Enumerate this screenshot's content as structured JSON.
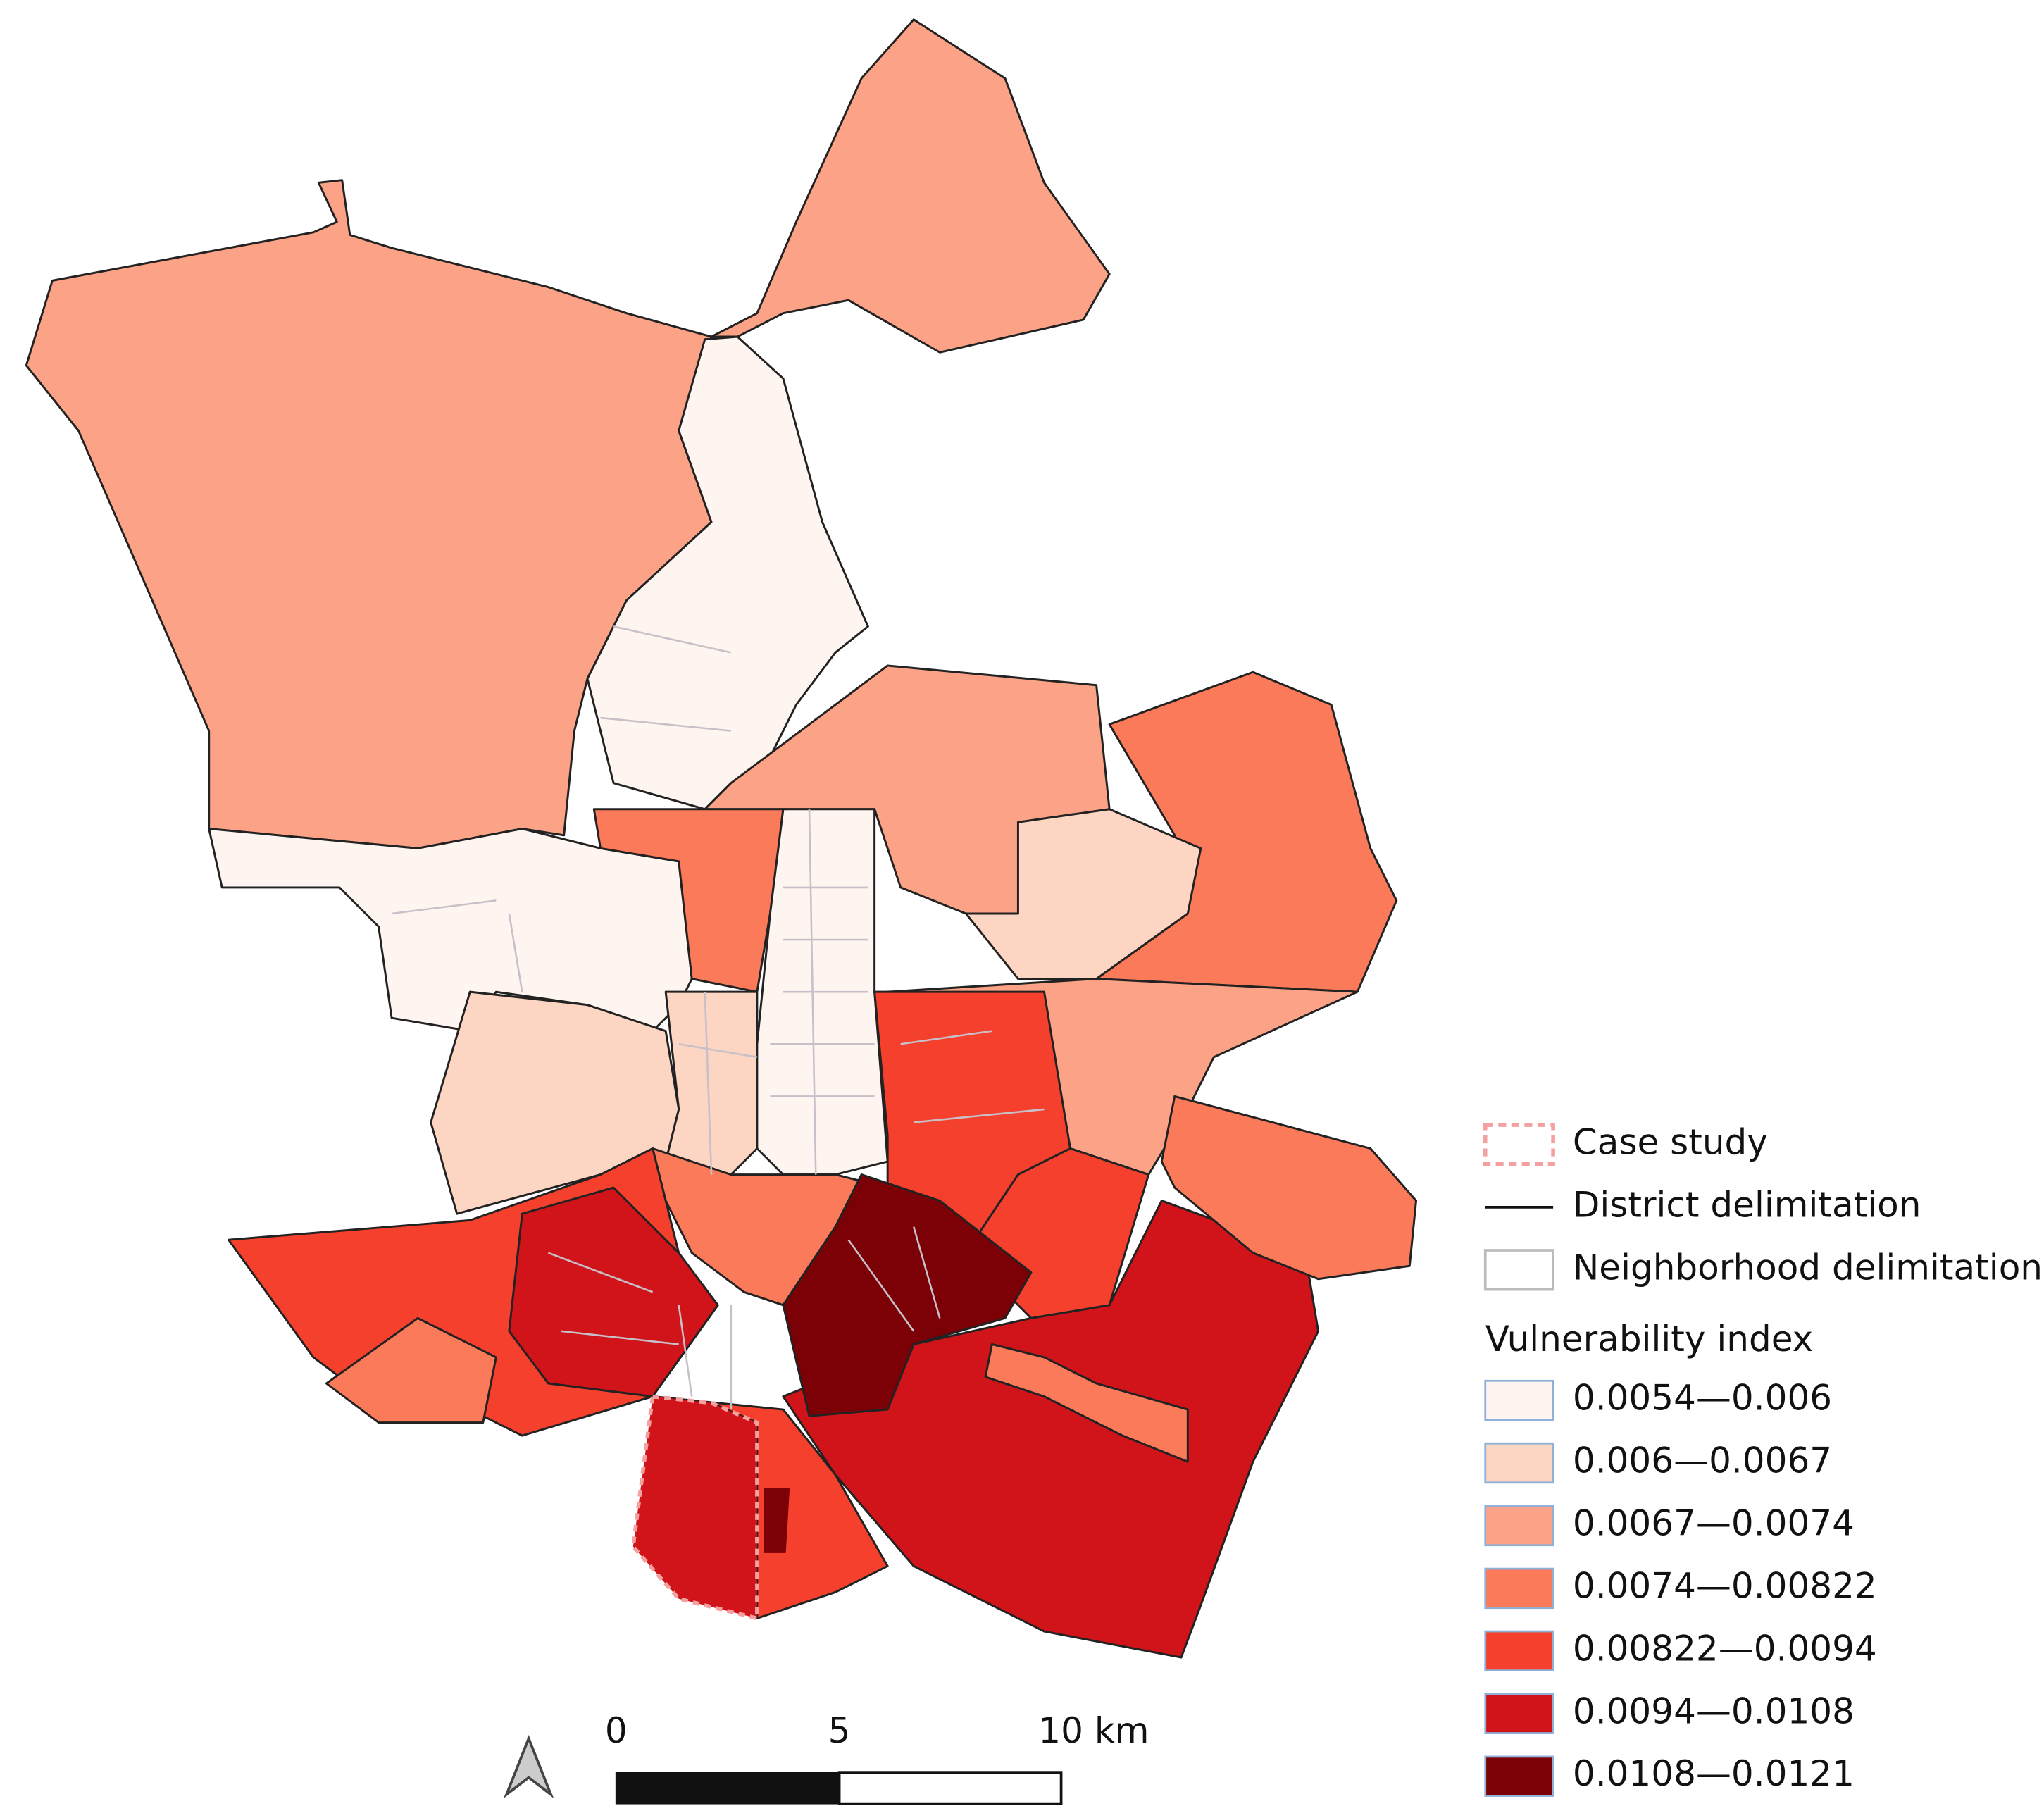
{
  "legend": {
    "items": [
      {
        "label": "Case study"
      },
      {
        "label": "District delimitation"
      },
      {
        "label": "Neighborhood delimitation"
      }
    ],
    "title": "Vulnerability index",
    "classes": [
      {
        "label": "0.0054—0.006",
        "color": "#fff5f0"
      },
      {
        "label": "0.006—0.0067",
        "color": "#fdd5c3"
      },
      {
        "label": "0.0067—0.0074",
        "color": "#fca387"
      },
      {
        "label": "0.0074—0.00822",
        "color": "#fb7a5a"
      },
      {
        "label": "0.00822—0.0094",
        "color": "#f4402c"
      },
      {
        "label": "0.0094—0.0108",
        "color": "#d01419"
      },
      {
        "label": "0.0108—0.0121",
        "color": "#7c0106"
      }
    ]
  },
  "scale_bar": {
    "labels": [
      "0",
      "5",
      "10 km"
    ]
  }
}
